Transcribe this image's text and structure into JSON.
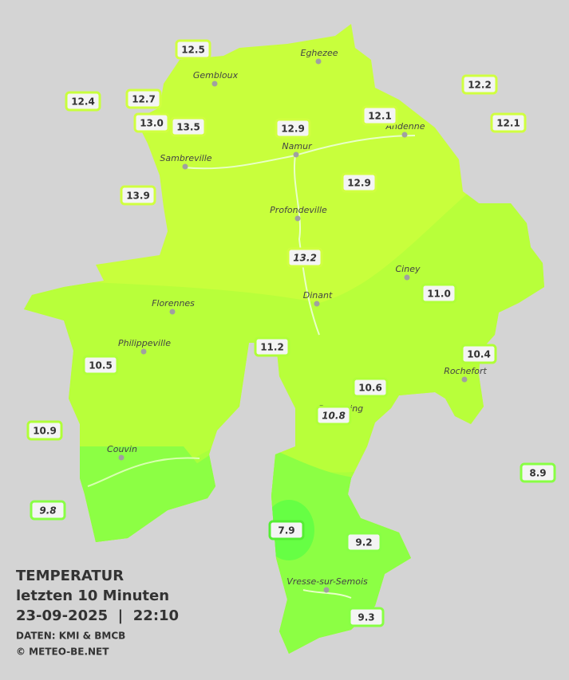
{
  "title": "TEMPERATUR",
  "subtitle": "letzten 10 Minuten",
  "datetime": "23-09-2025  |  22:10",
  "source": "DATEN: KMI & BMCB",
  "copyright": "© METEO-BE.NET",
  "cities": [
    "Eghezee",
    "Gembloux",
    "Andenne",
    "Namur",
    "Sambreville",
    "Profondeville",
    "Ciney",
    "Dinant",
    "Florennes",
    "Philippeville",
    "Rochefort",
    "Beauraing",
    "Couvin",
    "Vresse-sur-Semois"
  ],
  "stations": [
    {
      "label": "12.5"
    },
    {
      "label": "12.4"
    },
    {
      "label": "12.7"
    },
    {
      "label": "13.0"
    },
    {
      "label": "13.5"
    },
    {
      "label": "12.9"
    },
    {
      "label": "12.1"
    },
    {
      "label": "12.2"
    },
    {
      "label": "12.1"
    },
    {
      "label": "13.9"
    },
    {
      "label": "12.9"
    },
    {
      "label": "13.2",
      "style": "italic"
    },
    {
      "label": "11.0"
    },
    {
      "label": "11.2"
    },
    {
      "label": "10.5"
    },
    {
      "label": "10.4"
    },
    {
      "label": "10.6"
    },
    {
      "label": "10.8",
      "style": "italic"
    },
    {
      "label": "10.9"
    },
    {
      "label": "8.9"
    },
    {
      "label": "9.8",
      "style": "italic"
    },
    {
      "label": "7.9"
    },
    {
      "label": "9.2"
    },
    {
      "label": "9.3"
    }
  ]
}
